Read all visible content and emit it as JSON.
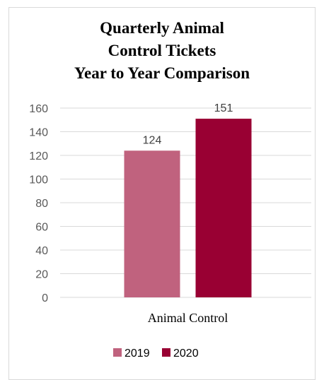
{
  "chart_data": {
    "type": "bar",
    "title_lines": [
      "Quarterly Animal",
      "Control Tickets",
      "Year to Year Comparison"
    ],
    "categories": [
      "Animal Control"
    ],
    "series": [
      {
        "name": "2019",
        "values": [
          124
        ],
        "color": "#c0627e"
      },
      {
        "name": "2020",
        "values": [
          151
        ],
        "color": "#990033"
      }
    ],
    "ylim": [
      0,
      160
    ],
    "yticks": [
      0,
      20,
      40,
      60,
      80,
      100,
      120,
      140,
      160
    ],
    "grid": true,
    "legend": "bottom",
    "gridColor": "#d9d9d9"
  }
}
